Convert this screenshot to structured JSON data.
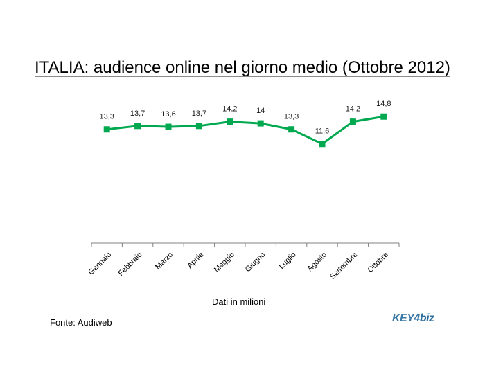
{
  "title": "ITALIA: audience online nel giorno medio (Ottobre 2012)",
  "note": "Dati in milioni",
  "source": "Fonte: Audiweb",
  "logo": {
    "part1": "KEY",
    "part2": "4",
    "part3": "biz"
  },
  "colors": {
    "series": "#00a94f",
    "axis": "#808080",
    "title_rule": "#8c8c8c",
    "logo": "#3b79a8"
  },
  "chart_data": {
    "type": "line",
    "title": "ITALIA: audience online nel giorno medio (Ottobre 2012)",
    "xlabel": "",
    "ylabel": "",
    "categories": [
      "Gennaio",
      "Febbraio",
      "Marzo",
      "Aprile",
      "Maggio",
      "Giugno",
      "Luglio",
      "Agosto",
      "Settembre",
      "Ottobre"
    ],
    "values": [
      13.3,
      13.7,
      13.6,
      13.7,
      14.2,
      14,
      13.3,
      11.6,
      14.2,
      14.8
    ],
    "data_labels": [
      "13,3",
      "13,7",
      "13,6",
      "13,7",
      "14,2",
      "14",
      "13,3",
      "11,6",
      "14,2",
      "14,8"
    ],
    "ylim": [
      0,
      22
    ],
    "grid": false,
    "legend": "none"
  }
}
